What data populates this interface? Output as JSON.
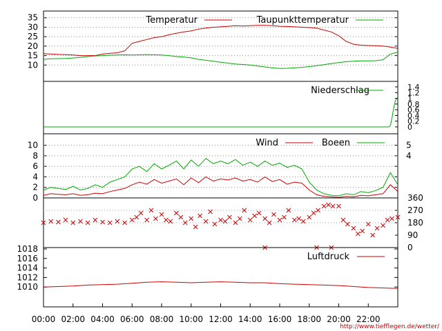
{
  "chart_data": [
    {
      "type": "line",
      "id": "temp",
      "ylim": [
        5,
        36
      ],
      "yticks": [
        10,
        15,
        20,
        25,
        30,
        35
      ],
      "series": [
        {
          "name": "Temperatur",
          "color": "#cc0000",
          "x": [
            0,
            0.5,
            1,
            1.5,
            2,
            2.5,
            3,
            3.5,
            4,
            4.5,
            5,
            5.5,
            6,
            6.5,
            7,
            7.5,
            8,
            8.5,
            9,
            9.5,
            10,
            10.5,
            11,
            11.5,
            12,
            12.5,
            13,
            13.5,
            14,
            14.5,
            15,
            15.5,
            16,
            16.5,
            17,
            17.5,
            18,
            18.5,
            19,
            19.5,
            20,
            20.5,
            21,
            21.5,
            22,
            22.5,
            23,
            23.5,
            24
          ],
          "y": [
            16,
            15.8,
            15.6,
            15.5,
            15.3,
            15,
            15,
            15,
            15.8,
            16.2,
            16.5,
            17.5,
            21.5,
            22.5,
            23.5,
            24.5,
            25,
            26,
            26.8,
            27.5,
            28,
            29,
            29.5,
            30,
            30.2,
            30.5,
            30.8,
            30.6,
            30.8,
            31,
            31,
            30.8,
            30.5,
            30.4,
            30.2,
            30,
            29.8,
            29.5,
            28.5,
            27.5,
            25.5,
            22.5,
            21,
            20.5,
            20.3,
            20.2,
            20,
            19.5,
            18.8
          ]
        },
        {
          "name": "Taupunkttemperatur",
          "color": "#00aa00",
          "x": [
            0,
            0.5,
            1,
            1.5,
            2,
            2.5,
            3,
            3.5,
            4,
            4.5,
            5,
            5.5,
            6,
            6.5,
            7,
            7.5,
            8,
            8.5,
            9,
            9.5,
            10,
            10.5,
            11,
            11.5,
            12,
            12.5,
            13,
            13.5,
            14,
            14.5,
            15,
            15.5,
            16,
            16.5,
            17,
            17.5,
            18,
            18.5,
            19,
            19.5,
            20,
            20.5,
            21,
            21.5,
            22,
            22.5,
            23,
            23.5,
            24
          ],
          "y": [
            13,
            13.3,
            13.4,
            13.5,
            13.7,
            14,
            14.5,
            14.8,
            15,
            15.2,
            15.3,
            15.4,
            15.3,
            15.4,
            15.5,
            15.4,
            15.3,
            15,
            14.5,
            14.2,
            13.8,
            13,
            12.5,
            12,
            11.5,
            11,
            10.5,
            10.3,
            10,
            9.5,
            9,
            8.5,
            8.2,
            8.3,
            8.5,
            8.8,
            9.2,
            9.6,
            10.2,
            10.8,
            11.3,
            11.8,
            12,
            12.2,
            12.2,
            12.3,
            12.8,
            15.8,
            16.8
          ]
        }
      ]
    },
    {
      "type": "line",
      "id": "rain",
      "ylim": [
        0,
        1.4
      ],
      "yticks": [
        0,
        0.2,
        0.4,
        0.6,
        0.8,
        1,
        1.2,
        1.4
      ],
      "series": [
        {
          "name": "Niederschlag",
          "color": "#00aa00",
          "x": [
            0,
            23.4,
            23.5,
            23.6,
            23.7,
            23.8,
            23.9,
            24
          ],
          "y": [
            0,
            0,
            0.05,
            0.3,
            0.6,
            0.85,
            1.0,
            0.95
          ]
        }
      ]
    },
    {
      "type": "line",
      "id": "wind",
      "ylim": [
        0,
        11
      ],
      "yticks": [
        0,
        2,
        4,
        6,
        8,
        10
      ],
      "right_ticks": [
        4,
        5
      ],
      "series": [
        {
          "name": "Wind",
          "color": "#cc0000",
          "x": [
            0,
            0.5,
            1,
            1.5,
            2,
            2.5,
            3,
            3.5,
            4,
            4.5,
            5,
            5.5,
            6,
            6.5,
            7,
            7.5,
            8,
            8.5,
            9,
            9.5,
            10,
            10.5,
            11,
            11.5,
            12,
            12.5,
            13,
            13.5,
            14,
            14.5,
            15,
            15.5,
            16,
            16.5,
            17,
            17.5,
            18,
            18.5,
            19,
            19.5,
            20,
            20.5,
            21,
            21.5,
            22,
            22.5,
            23,
            23.5,
            24
          ],
          "y": [
            0.5,
            0.8,
            0.7,
            0.6,
            0.8,
            0.5,
            0.6,
            0.9,
            0.8,
            1.2,
            1.5,
            1.8,
            2.5,
            3,
            2.6,
            3.5,
            2.8,
            3.2,
            3.6,
            2.5,
            3.8,
            2.9,
            4,
            3.2,
            3.6,
            3.4,
            3.8,
            3.2,
            3.5,
            3,
            4,
            3.1,
            3.5,
            2.6,
            3,
            2.8,
            1.5,
            0.6,
            0.3,
            0.2,
            0.1,
            0.3,
            0.2,
            0.5,
            0.4,
            0.6,
            0.8,
            2.5,
            1.2
          ]
        },
        {
          "name": "Boeen",
          "color": "#00aa00",
          "x": [
            0,
            0.5,
            1,
            1.5,
            2,
            2.5,
            3,
            3.5,
            4,
            4.5,
            5,
            5.5,
            6,
            6.5,
            7,
            7.5,
            8,
            8.5,
            9,
            9.5,
            10,
            10.5,
            11,
            11.5,
            12,
            12.5,
            13,
            13.5,
            14,
            14.5,
            15,
            15.5,
            16,
            16.5,
            17,
            17.5,
            18,
            18.5,
            19,
            19.5,
            20,
            20.5,
            21,
            21.5,
            22,
            22.5,
            23,
            23.5,
            24
          ],
          "y": [
            1.5,
            2,
            1.8,
            1.6,
            2.2,
            1.5,
            1.8,
            2.5,
            2,
            3,
            3.5,
            4,
            5.5,
            6,
            5,
            6.5,
            5.5,
            6.2,
            7,
            5.5,
            7.2,
            6,
            7.5,
            6.5,
            7,
            6.5,
            7.3,
            6.2,
            6.8,
            6,
            7,
            6.2,
            6.6,
            5.8,
            6.2,
            5.5,
            3,
            1.5,
            0.8,
            0.5,
            0.4,
            0.8,
            0.6,
            1.2,
            1,
            1.4,
            2,
            4.8,
            2.5
          ]
        }
      ]
    },
    {
      "type": "scatter",
      "id": "direction",
      "ylim": [
        0,
        360
      ],
      "yticks": [
        0,
        90,
        180,
        270,
        360
      ],
      "series": [
        {
          "name": "",
          "color": "#cc0000",
          "x": [
            0,
            0.5,
            1,
            1.5,
            2,
            2.5,
            3,
            3.5,
            4,
            4.5,
            5,
            5.5,
            6,
            6.3,
            6.6,
            7,
            7.3,
            7.6,
            8,
            8.3,
            8.6,
            9,
            9.3,
            9.6,
            10,
            10.3,
            10.6,
            11,
            11.3,
            11.6,
            12,
            12.3,
            12.6,
            13,
            13.3,
            13.6,
            14,
            14.3,
            14.6,
            15,
            15.3,
            15.6,
            16,
            16.3,
            16.6,
            17,
            17.3,
            17.6,
            18,
            18.3,
            18.6,
            19,
            19.3,
            19.6,
            20,
            20.3,
            20.6,
            21,
            21.3,
            21.6,
            22,
            22.3,
            22.6,
            23,
            23.3,
            23.6,
            24,
            15,
            18.5,
            19.5
          ],
          "y": [
            180,
            190,
            185,
            200,
            180,
            190,
            180,
            200,
            185,
            180,
            190,
            180,
            200,
            220,
            250,
            200,
            270,
            210,
            240,
            200,
            190,
            250,
            220,
            180,
            210,
            150,
            230,
            190,
            260,
            170,
            200,
            190,
            220,
            180,
            210,
            270,
            200,
            230,
            250,
            210,
            180,
            240,
            200,
            220,
            270,
            200,
            210,
            190,
            220,
            250,
            270,
            300,
            310,
            300,
            300,
            200,
            170,
            140,
            100,
            120,
            170,
            90,
            140,
            160,
            200,
            210,
            220,
            0,
            0,
            0
          ]
        }
      ]
    },
    {
      "type": "line",
      "id": "pressure",
      "ylim": [
        1008,
        1018
      ],
      "yticks": [
        1010,
        1012,
        1014,
        1016,
        1018
      ],
      "series": [
        {
          "name": "Luftdruck",
          "color": "#cc0000",
          "x": [
            0,
            1,
            2,
            3,
            4,
            5,
            6,
            7,
            8,
            9,
            10,
            11,
            12,
            13,
            14,
            15,
            16,
            17,
            18,
            19,
            20,
            21,
            22,
            23,
            24
          ],
          "y": [
            1010,
            1010.1,
            1010.2,
            1010.4,
            1010.5,
            1010.6,
            1010.8,
            1011,
            1011.1,
            1011,
            1010.9,
            1011,
            1011.1,
            1011,
            1010.9,
            1010.9,
            1010.7,
            1010.6,
            1010.5,
            1010.4,
            1010.3,
            1010.1,
            1009.9,
            1009.8,
            1009.7
          ]
        }
      ]
    }
  ],
  "x_ticks": [
    "00:00",
    "02:00",
    "04:00",
    "06:00",
    "08:00",
    "10:00",
    "12:00",
    "14:00",
    "16:00",
    "18:00",
    "20:00",
    "22:00"
  ],
  "url": "http://www.tiefflegen.de/wetter/"
}
